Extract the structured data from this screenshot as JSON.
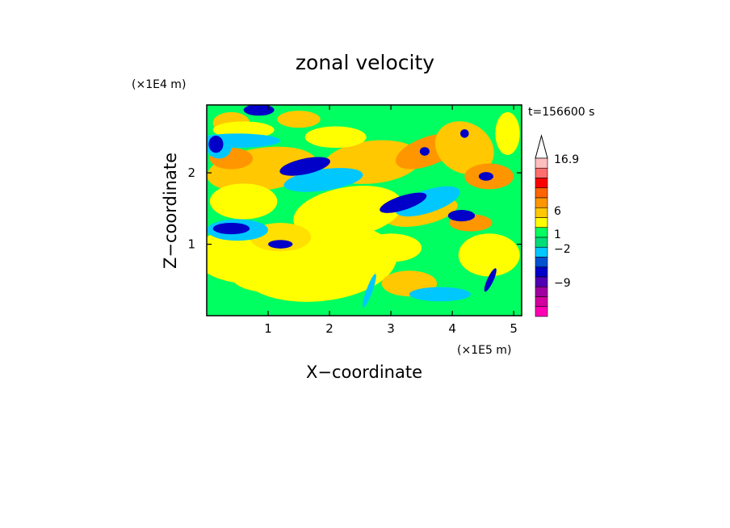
{
  "chart_data": {
    "type": "heatmap",
    "title": "zonal velocity",
    "xlabel": "X−coordinate",
    "ylabel": "Z−coordinate",
    "x_unit": "(×1E5 m)",
    "y_unit": "(×1E4 m)",
    "time_label": "t=156600 s",
    "xlim": [
      0,
      5.13
    ],
    "ylim": [
      0,
      2.95
    ],
    "x_ticks": [
      "1",
      "2",
      "3",
      "4",
      "5"
    ],
    "y_ticks": [
      "1",
      "2"
    ],
    "x_tick_values": [
      1,
      2,
      3,
      4,
      5
    ],
    "y_tick_values": [
      1,
      2
    ],
    "colorbar": {
      "labels": [
        "16.9",
        "6",
        "1",
        "−2",
        "−9"
      ],
      "levels": [
        -15,
        -11,
        -9,
        -6,
        -4,
        -3,
        -2,
        -1,
        0,
        1,
        2,
        4,
        6,
        9,
        12,
        16.9
      ],
      "colors": [
        "#ff00b4",
        "#d400a0",
        "#a000a0",
        "#5000b4",
        "#0000c8",
        "#0050d2",
        "#00c8ff",
        "#00dc78",
        "#00ff60",
        "#ffff00",
        "#ffc800",
        "#ff9600",
        "#ff6400",
        "#ff0000",
        "#ff6e6e",
        "#ffbebe"
      ]
    }
  }
}
